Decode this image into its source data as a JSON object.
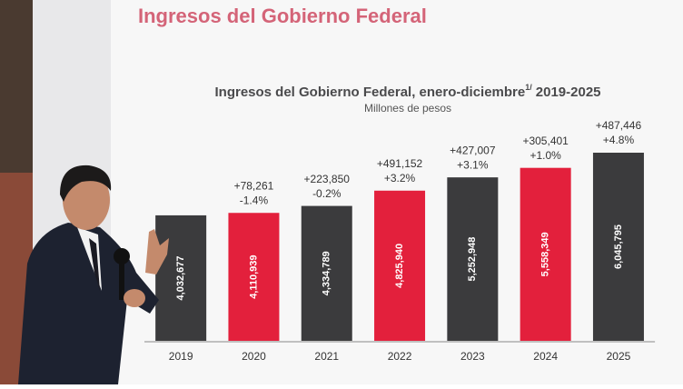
{
  "slide_title": "Ingresos del Gobierno Federal",
  "chart_data": {
    "type": "bar",
    "title": "Ingresos del Gobierno Federal, enero-diciembre",
    "title_superscript": "1/",
    "title_suffix": "2019-2025",
    "subtitle": "Millones de pesos",
    "categories": [
      "2019",
      "2020",
      "2021",
      "2022",
      "2023",
      "2024",
      "2025"
    ],
    "values": [
      4032677,
      4110939,
      4334789,
      4825940,
      5252948,
      5558349,
      6045795
    ],
    "value_labels": [
      "4,032,677",
      "4,110,939",
      "4,334,789",
      "4,825,940",
      "5,252,948",
      "5,558,349",
      "6,045,795"
    ],
    "colors": [
      "#3b3b3d",
      "#e3203c",
      "#3b3b3d",
      "#e3203c",
      "#3b3b3d",
      "#e3203c",
      "#3b3b3d"
    ],
    "annotations": [
      null,
      [
        "+78,261",
        "-1.4%"
      ],
      [
        "+223,850",
        "-0.2%"
      ],
      [
        "+491,152",
        "+3.2%"
      ],
      [
        "+427,007",
        "+3.1%"
      ],
      [
        "+305,401",
        "+1.0%"
      ],
      [
        "+487,446",
        "+4.8%"
      ]
    ]
  }
}
